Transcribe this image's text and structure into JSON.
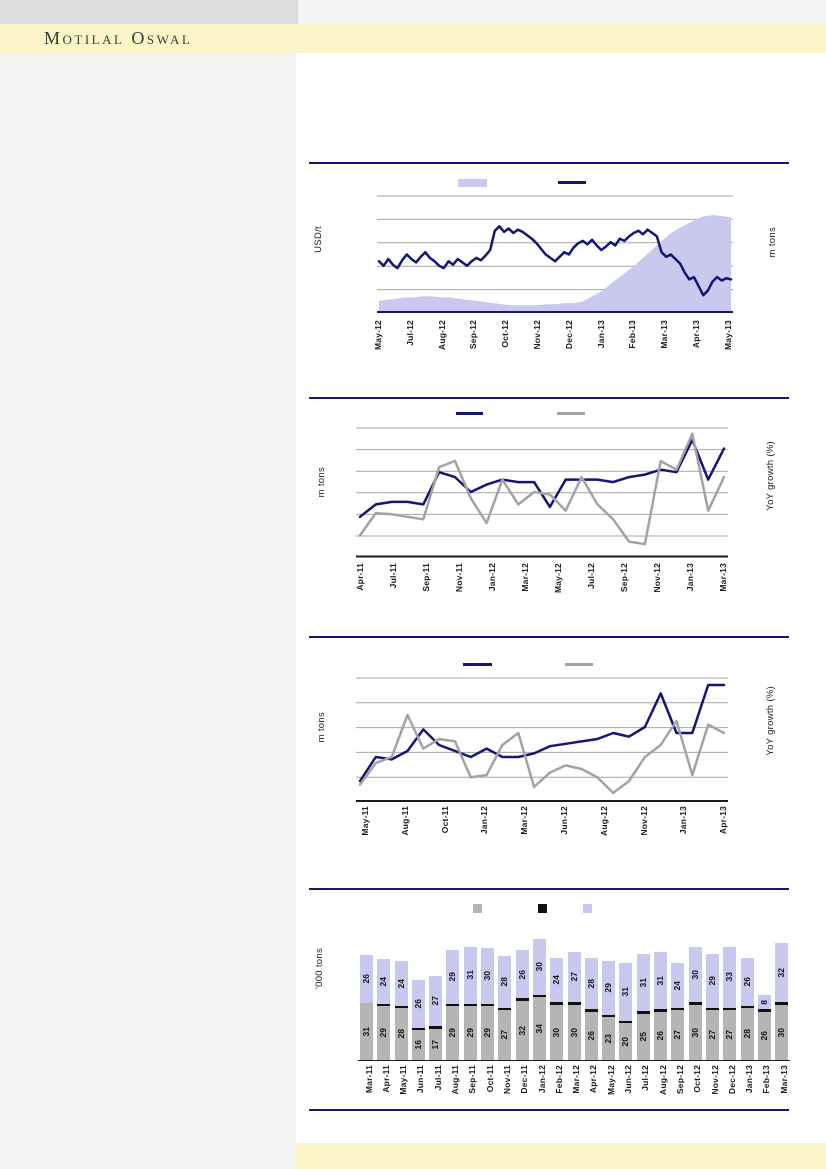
{
  "header": {
    "brand": "Motilal Oswal"
  },
  "footer": {
    "band_color": "#fcf5c9"
  },
  "colors": {
    "navy": "#151577",
    "light_purple": "#c9c9f0",
    "line_gray": "#a3a3a3",
    "bar_gray": "#b5b5b5",
    "grid_gray": "#a6a6a6",
    "axis_black": "#1a1a1a",
    "band_yellow": "#fcf5c9",
    "header_gray_block": "#dcdcdc",
    "page_gray": "#f4f4f3"
  },
  "chart_data": [
    {
      "type": "area",
      "title": "",
      "left_axis_label": "USD/t",
      "right_axis_label": "m tons",
      "axis_value_labels_visible": false,
      "legend_position": "top",
      "legend": [
        {
          "swatch": "area",
          "color": "#c9c9f0",
          "label": ""
        },
        {
          "swatch": "line",
          "color": "#151577",
          "label": ""
        }
      ],
      "x_tick_labels": [
        "May-12",
        "Jul-12",
        "Aug-12",
        "Sep-12",
        "Oct-12",
        "Nov-12",
        "Dec-12",
        "Jan-13",
        "Feb-13",
        "Mar-13",
        "Apr-13",
        "May-13"
      ],
      "series": [
        {
          "name": "shaded-area-series",
          "type": "area",
          "color": "#c9c9f0",
          "values_pct_of_axis": [
            9,
            10,
            11,
            12,
            12,
            13,
            13,
            12,
            12,
            11,
            10,
            9,
            8,
            7,
            6,
            5,
            5,
            5,
            5,
            6,
            6,
            7,
            7,
            8,
            12,
            16,
            22,
            28,
            34,
            40,
            47,
            54,
            61,
            68,
            73,
            77,
            81,
            84,
            85,
            84,
            83
          ]
        },
        {
          "name": "price-line-series",
          "type": "line",
          "color": "#151577",
          "values_pct_of_axis": [
            44,
            40,
            46,
            41,
            38,
            45,
            50,
            46,
            43,
            48,
            52,
            47,
            44,
            40,
            38,
            44,
            41,
            46,
            43,
            40,
            44,
            47,
            45,
            49,
            54,
            71,
            75,
            70,
            73,
            69,
            72,
            70,
            67,
            64,
            60,
            55,
            50,
            47,
            44,
            48,
            52,
            50,
            56,
            60,
            62,
            59,
            63,
            58,
            54,
            57,
            61,
            58,
            64,
            62,
            66,
            69,
            71,
            68,
            72,
            69,
            66,
            52,
            48,
            50,
            46,
            42,
            34,
            28,
            30,
            22,
            14,
            18,
            26,
            30,
            27,
            29,
            28
          ]
        }
      ],
      "note": "No numeric axis ticks or legend text rendered; series values estimated as % of plot height."
    },
    {
      "type": "line",
      "title": "",
      "left_axis_label": "m tons",
      "right_axis_label": "YoY growth (%)",
      "axis_value_labels_visible": false,
      "legend_position": "top",
      "legend": [
        {
          "swatch": "line",
          "color": "#151577",
          "label": ""
        },
        {
          "swatch": "line",
          "color": "#a3a3a3",
          "label": ""
        }
      ],
      "x_tick_labels": [
        "Apr-11",
        "Jul-11",
        "Sep-11",
        "Nov-11",
        "Jan-12",
        "Mar-12",
        "May-12",
        "Jul-12",
        "Sep-12",
        "Nov-12",
        "Jan-13",
        "Mar-13"
      ],
      "series": [
        {
          "name": "volume-line",
          "type": "line",
          "color": "#151577",
          "values_pct_of_axis": [
            30,
            40,
            42,
            42,
            40,
            66,
            62,
            50,
            56,
            60,
            58,
            58,
            38,
            60,
            60,
            60,
            58,
            62,
            64,
            68,
            66,
            92,
            60,
            85
          ]
        },
        {
          "name": "yoy-growth-line",
          "type": "line",
          "color": "#a3a3a3",
          "values_pct_of_axis": [
            15,
            33,
            32,
            30,
            28,
            70,
            75,
            45,
            25,
            60,
            40,
            50,
            48,
            35,
            62,
            40,
            28,
            10,
            8,
            75,
            68,
            97,
            35,
            62
          ]
        }
      ],
      "note": "Monthly points Apr-11 to Mar-13; values estimated as % of plot height."
    },
    {
      "type": "line",
      "title": "",
      "left_axis_label": "m tons",
      "right_axis_label": "YoY growth (%)",
      "axis_value_labels_visible": false,
      "legend_position": "top",
      "legend": [
        {
          "swatch": "line",
          "color": "#151577",
          "label": ""
        },
        {
          "swatch": "line",
          "color": "#a3a3a3",
          "label": ""
        }
      ],
      "x_tick_labels": [
        "May-11",
        "Aug-11",
        "Oct-11",
        "Jan-12",
        "Mar-12",
        "Jun-12",
        "Aug-12",
        "Nov-12",
        "Jan-13",
        "Apr-13"
      ],
      "series": [
        {
          "name": "volume-line",
          "type": "line",
          "color": "#151577",
          "values_pct_of_axis": [
            15,
            35,
            33,
            40,
            58,
            45,
            40,
            35,
            42,
            35,
            35,
            38,
            44,
            46,
            48,
            50,
            55,
            52,
            60,
            88,
            55,
            55,
            95,
            95
          ]
        },
        {
          "name": "yoy-growth-line",
          "type": "line",
          "color": "#a3a3a3",
          "values_pct_of_axis": [
            12,
            30,
            35,
            70,
            42,
            50,
            48,
            18,
            20,
            45,
            55,
            10,
            22,
            28,
            25,
            18,
            5,
            15,
            35,
            45,
            65,
            20,
            62,
            55
          ]
        }
      ],
      "note": "Monthly points May-11 to Apr-13; values estimated as % of plot height."
    },
    {
      "type": "bar",
      "title": "",
      "left_axis_label": "'000 tons",
      "axis_value_labels_visible": false,
      "legend_position": "top",
      "legend": [
        {
          "swatch": "square",
          "color": "#b5b5b5",
          "label": ""
        },
        {
          "swatch": "square",
          "color": "#111111",
          "label": ""
        },
        {
          "swatch": "square",
          "color": "#c9c9f0",
          "label": ""
        }
      ],
      "categories": [
        "Mar-11",
        "Apr-11",
        "May-11",
        "Jun-11",
        "Jul-11",
        "Aug-11",
        "Sep-11",
        "Oct-11",
        "Nov-11",
        "Dec-11",
        "Jan-12",
        "Feb-12",
        "Mar-12",
        "Apr-12",
        "May-12",
        "Jun-12",
        "Jul-12",
        "Aug-12",
        "Sep-12",
        "Oct-12",
        "Nov-12",
        "Dec-12",
        "Jan-13",
        "Feb-13",
        "Mar-13"
      ],
      "series": [
        {
          "name": "bottom-gray-segment",
          "color": "#b5b5b5",
          "values": [
            31,
            29,
            28,
            16,
            17,
            29,
            29,
            29,
            27,
            32,
            34,
            30,
            30,
            26,
            23,
            20,
            25,
            26,
            27,
            30,
            27,
            27,
            28,
            26,
            30
          ]
        },
        {
          "name": "top-purple-segment",
          "color": "#c9c9f0",
          "values": [
            26,
            24,
            24,
            26,
            27,
            29,
            31,
            30,
            28,
            26,
            30,
            24,
            27,
            28,
            29,
            31,
            31,
            31,
            24,
            30,
            29,
            33,
            26,
            8,
            32
          ]
        }
      ],
      "middle_black_segment": {
        "color": "#111111",
        "thickness_px": 2.5,
        "note": "thin unlabeled black segment between stacks; not visible on first bar"
      }
    }
  ]
}
